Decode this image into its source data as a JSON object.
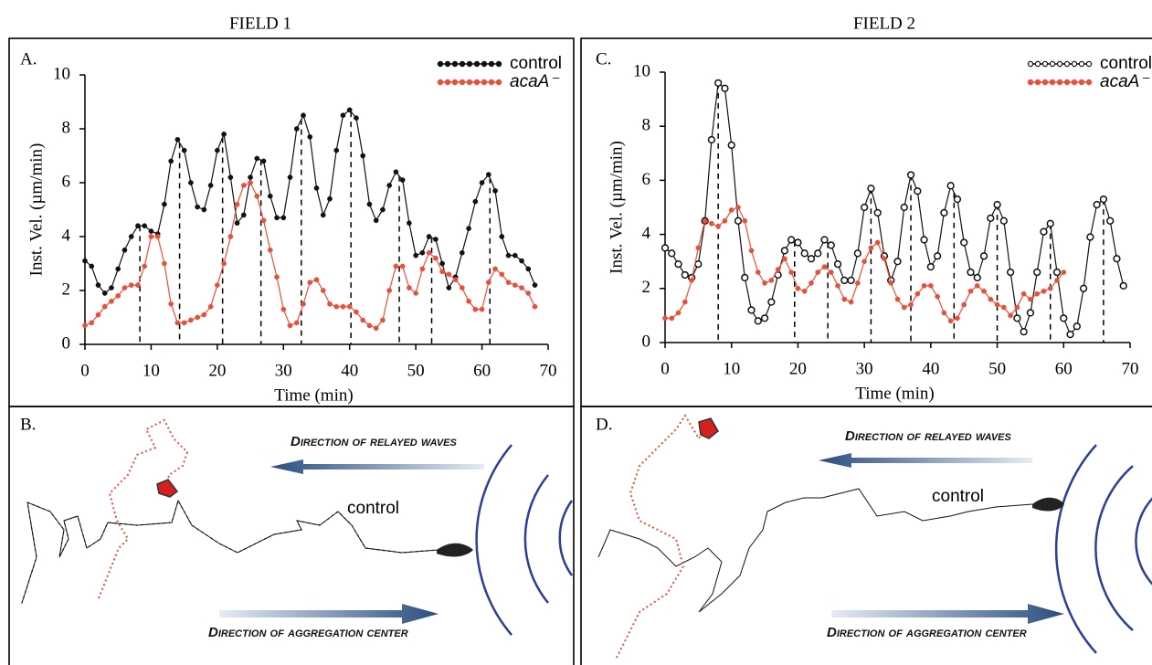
{
  "figure_titles": [
    "FIELD 1",
    "FIELD 2"
  ],
  "chart_data": [
    {
      "type": "line",
      "panel_label": "A.",
      "xlabel": "Time (min)",
      "ylabel": "Inst. Vel. (µm/min)",
      "x": [
        0,
        1,
        2,
        3,
        4,
        5,
        6,
        7,
        8,
        9,
        10,
        11,
        12,
        13,
        14,
        15,
        16,
        17,
        18,
        19,
        20,
        21,
        22,
        23,
        24,
        25,
        26,
        27,
        28,
        29,
        30,
        31,
        32,
        33,
        34,
        35,
        36,
        37,
        38,
        39,
        40,
        41,
        42,
        43,
        44,
        45,
        46,
        47,
        48,
        49,
        50,
        51,
        52,
        53,
        54,
        55,
        56,
        57,
        58,
        59,
        60,
        61,
        62,
        63,
        64,
        65,
        66,
        67,
        68
      ],
      "series": [
        {
          "name": "control",
          "color": "#111111",
          "marker": "filled",
          "values": [
            3.1,
            2.9,
            2.2,
            1.9,
            2.1,
            2.8,
            3.5,
            4.0,
            4.4,
            4.4,
            4.2,
            4.1,
            5.2,
            6.8,
            7.6,
            7.2,
            6.0,
            5.1,
            5.0,
            5.9,
            7.2,
            7.8,
            6.2,
            4.5,
            4.8,
            6.2,
            6.9,
            6.8,
            5.5,
            4.7,
            4.7,
            6.2,
            8.0,
            8.5,
            7.7,
            5.8,
            4.8,
            5.4,
            7.2,
            8.5,
            8.7,
            8.4,
            7.0,
            5.2,
            4.6,
            5.0,
            5.9,
            6.4,
            6.1,
            4.5,
            3.3,
            3.4,
            4.0,
            3.9,
            3.0,
            2.1,
            2.5,
            3.4,
            4.3,
            5.3,
            6.0,
            6.3,
            5.7,
            4.0,
            3.3,
            3.3,
            3.1,
            2.8,
            2.2
          ]
        },
        {
          "name": "acaA⁻",
          "color": "#e8503a",
          "marker": "filled",
          "values": [
            0.7,
            0.8,
            1.1,
            1.4,
            1.6,
            1.8,
            2.1,
            2.2,
            2.2,
            2.9,
            4.0,
            4.0,
            3.0,
            1.5,
            0.8,
            0.8,
            0.9,
            1.0,
            1.1,
            1.4,
            2.2,
            3.0,
            4.0,
            5.2,
            5.9,
            6.0,
            5.5,
            4.6,
            3.5,
            2.5,
            1.3,
            0.7,
            0.8,
            1.5,
            2.3,
            2.4,
            2.0,
            1.5,
            1.4,
            1.4,
            1.4,
            1.2,
            0.9,
            0.7,
            0.6,
            0.9,
            2.0,
            2.9,
            2.9,
            2.1,
            1.9,
            2.8,
            3.4,
            3.2,
            2.7,
            2.6,
            2.4,
            2.1,
            1.6,
            1.3,
            1.3,
            2.3,
            2.8,
            2.6,
            2.3,
            2.2,
            2.1,
            1.9,
            1.4
          ]
        }
      ],
      "peak_times": [
        8.3,
        14.3,
        20.8,
        26.6,
        32.7,
        40.2,
        47.5,
        52.4,
        61.2
      ],
      "xlim": [
        0,
        70
      ],
      "xticks": [
        0,
        10,
        20,
        30,
        40,
        50,
        60,
        70
      ],
      "ylim": [
        0,
        10
      ],
      "yticks": [
        0,
        2,
        4,
        6,
        8,
        10
      ],
      "legend": "upper right"
    },
    {
      "type": "line",
      "panel_label": "C.",
      "xlabel": "Time (min)",
      "ylabel": "Inst. Vel. (µm/min)",
      "x": [
        0,
        1,
        2,
        3,
        4,
        5,
        6,
        7,
        8,
        9,
        10,
        11,
        12,
        13,
        14,
        15,
        16,
        17,
        18,
        19,
        20,
        21,
        22,
        23,
        24,
        25,
        26,
        27,
        28,
        29,
        30,
        31,
        32,
        33,
        34,
        35,
        36,
        37,
        38,
        39,
        40,
        41,
        42,
        43,
        44,
        45,
        46,
        47,
        48,
        49,
        50,
        51,
        52,
        53,
        54,
        55,
        56,
        57,
        58,
        59,
        60,
        61,
        62,
        63,
        64,
        65,
        66,
        67,
        68,
        69
      ],
      "series": [
        {
          "name": "control",
          "color": "#111111",
          "marker": "open",
          "values": [
            3.5,
            3.3,
            2.9,
            2.5,
            2.4,
            2.9,
            4.5,
            7.5,
            9.6,
            9.4,
            7.3,
            4.5,
            2.4,
            1.2,
            0.8,
            0.9,
            1.5,
            2.5,
            3.4,
            3.8,
            3.7,
            3.3,
            3.1,
            3.3,
            3.8,
            3.6,
            2.9,
            2.3,
            2.3,
            3.3,
            5.0,
            5.7,
            4.8,
            3.2,
            2.3,
            3.0,
            5.0,
            6.2,
            5.6,
            3.8,
            2.8,
            3.2,
            4.8,
            5.8,
            5.3,
            3.7,
            2.6,
            2.4,
            3.2,
            4.6,
            5.1,
            4.5,
            2.6,
            0.9,
            0.4,
            1.1,
            2.6,
            4.1,
            4.4,
            2.6,
            0.9,
            0.3,
            0.6,
            2.0,
            3.9,
            5.1,
            5.3,
            4.5,
            3.1,
            2.1
          ]
        },
        {
          "name": "acaA⁻",
          "color": "#e8503a",
          "marker": "filled",
          "values": [
            0.9,
            0.9,
            1.1,
            1.5,
            2.3,
            3.5,
            4.5,
            4.4,
            4.3,
            4.5,
            4.9,
            5.0,
            4.5,
            3.4,
            2.6,
            2.2,
            2.3,
            2.7,
            3.1,
            2.6,
            2.0,
            1.9,
            2.2,
            2.6,
            2.8,
            2.6,
            2.1,
            1.6,
            1.5,
            2.2,
            3.0,
            3.5,
            3.7,
            3.1,
            2.2,
            1.6,
            1.3,
            1.4,
            1.8,
            2.1,
            2.1,
            1.7,
            1.1,
            0.8,
            0.9,
            1.4,
            1.9,
            2.1,
            1.9,
            1.6,
            1.4,
            1.3,
            1.0,
            1.3,
            1.8,
            1.6,
            1.8,
            1.9,
            2.0,
            2.3,
            2.6,
            null,
            null,
            null,
            null,
            null,
            null,
            null,
            null,
            null
          ]
        }
      ],
      "peak_times": [
        8,
        19.5,
        24.5,
        31,
        37,
        43.5,
        50,
        58,
        66
      ],
      "xlim": [
        0,
        70
      ],
      "xticks": [
        0,
        10,
        20,
        30,
        40,
        50,
        60,
        70
      ],
      "ylim": [
        0,
        10
      ],
      "yticks": [
        0,
        2,
        4,
        6,
        8,
        10
      ],
      "legend": "upper right"
    }
  ],
  "trajectory_panels": [
    {
      "panel_label": "B.",
      "relayed_waves": "Direction of relayed waves",
      "aggregation_center": "Direction of aggregation center",
      "track_label": "control"
    },
    {
      "panel_label": "D.",
      "relayed_waves": "Direction of relayed waves",
      "aggregation_center": "Direction of aggregation center",
      "track_label": "control"
    }
  ]
}
